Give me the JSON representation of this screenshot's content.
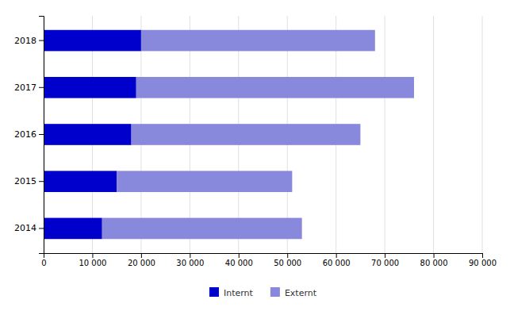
{
  "chart_data": {
    "type": "bar",
    "orientation": "horizontal",
    "stacked": true,
    "categories": [
      "2014",
      "2015",
      "2016",
      "2017",
      "2018"
    ],
    "series": [
      {
        "name": "Internt",
        "color": "#0000CC",
        "values": [
          12000,
          15000,
          18000,
          19000,
          20000
        ]
      },
      {
        "name": "Externt",
        "color": "#8888DD",
        "values": [
          41000,
          36000,
          47000,
          57000,
          48000
        ]
      }
    ],
    "xlim": [
      0,
      90000
    ],
    "xticks": [
      0,
      {
        "value": 10000,
        "label": "10 000"
      },
      {
        "value": 20000,
        "label": "20 000"
      },
      {
        "value": 30000,
        "label": "30 000"
      },
      {
        "value": 40000,
        "label": "40 000"
      },
      {
        "value": 50000,
        "label": "50 000"
      },
      {
        "value": 60000,
        "label": "60 000"
      },
      {
        "value": 70000,
        "label": "70 000"
      },
      {
        "value": 80000,
        "label": "80 000"
      },
      {
        "value": 90000,
        "label": "90 000"
      }
    ],
    "grid": true,
    "legend": "bottom"
  }
}
